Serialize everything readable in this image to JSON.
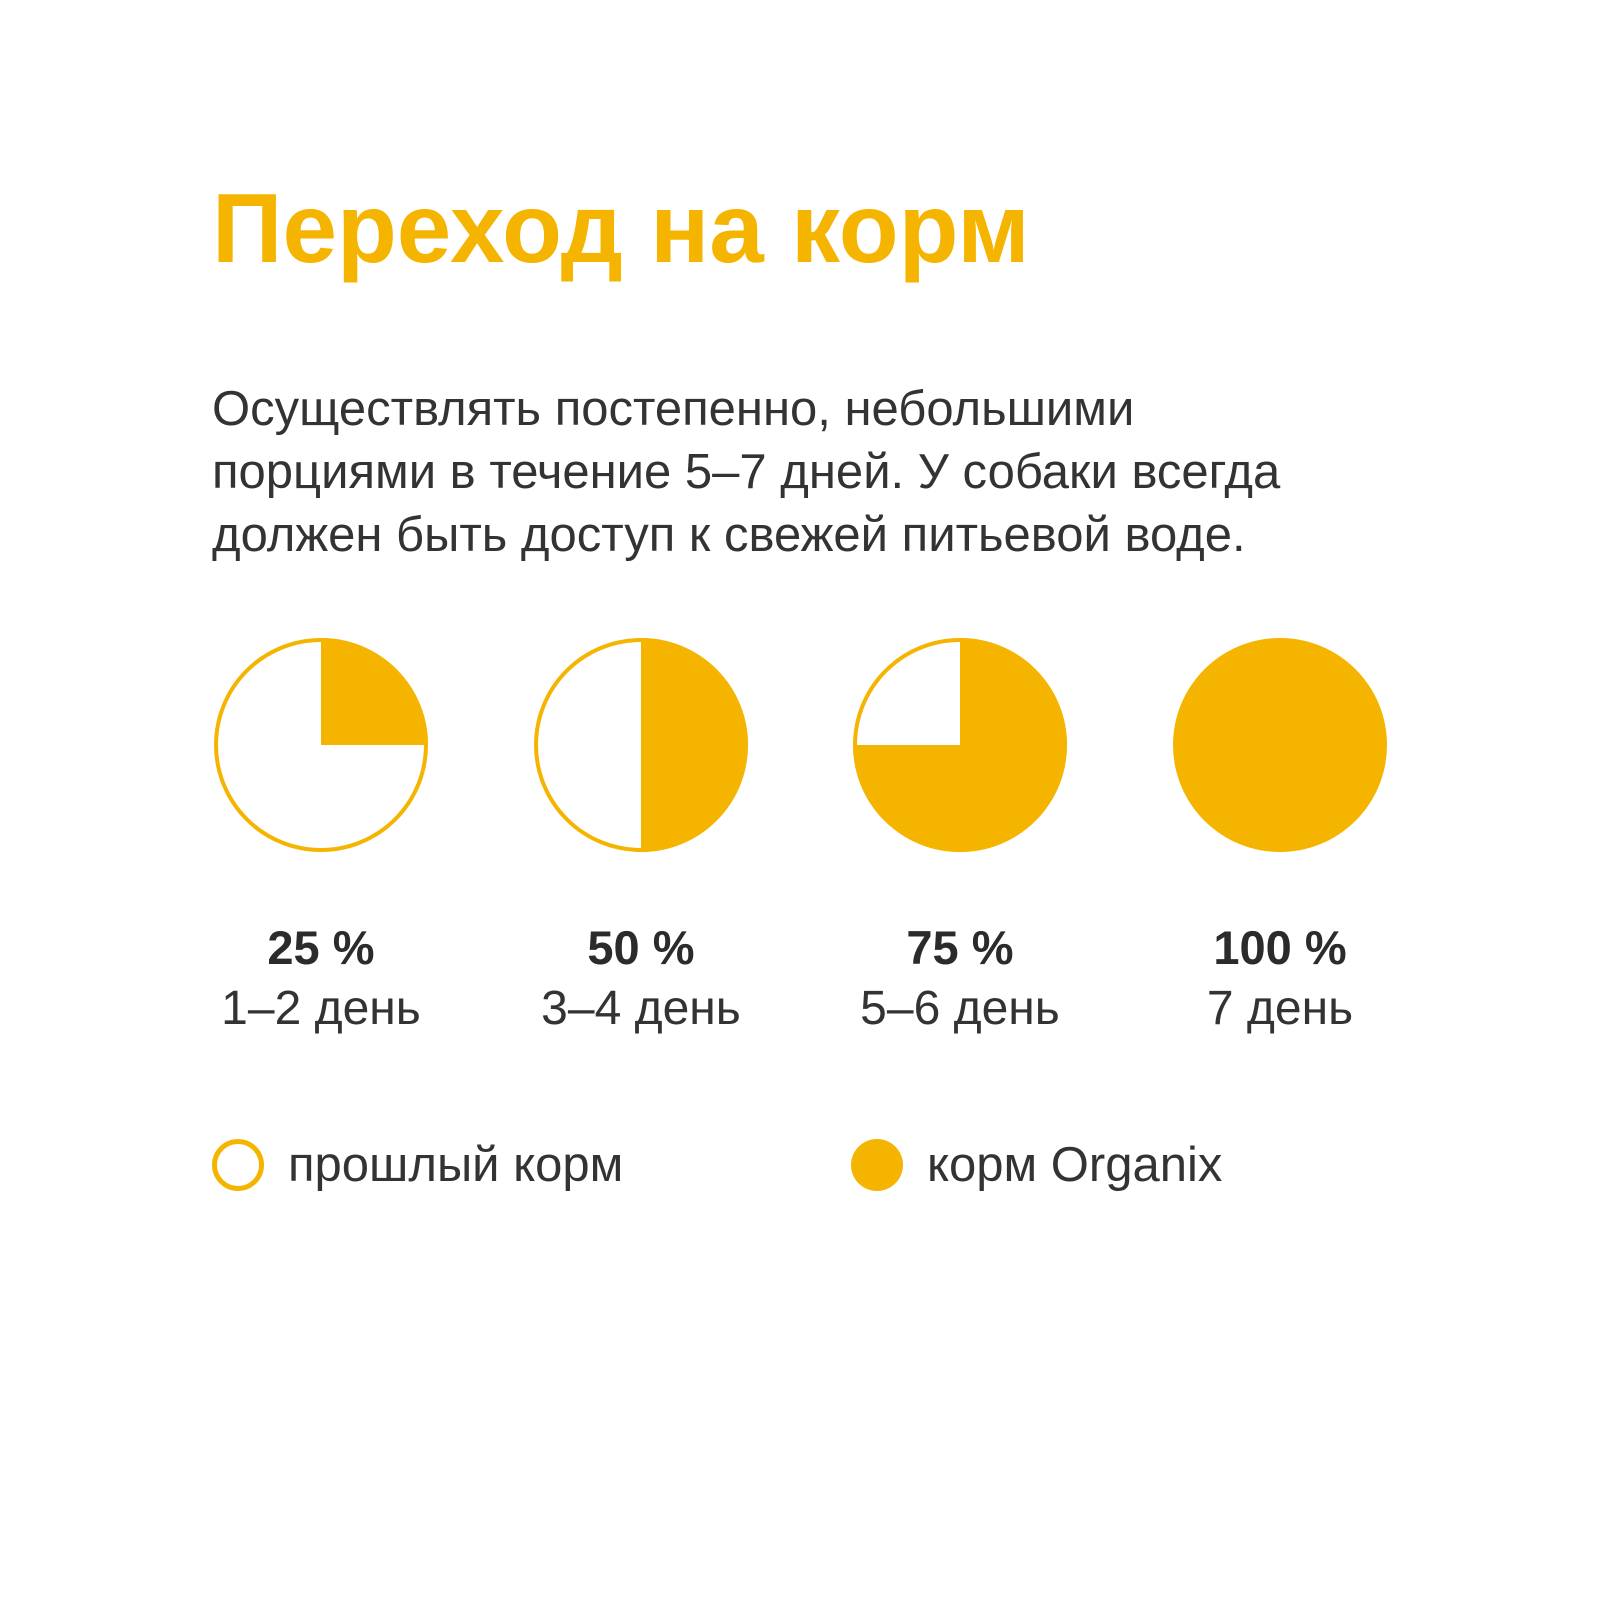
{
  "title": "Переход на корм",
  "description": [
    "Осуществлять постепенно, небольшими",
    "порциями в течение 5–7 дней. У собаки всегда",
    "должен быть доступ к свежей питьевой воде."
  ],
  "colors": {
    "accent": "#f5b400",
    "text": "#333333",
    "background": "#ffffff"
  },
  "chart_data": {
    "type": "pie",
    "series": [
      {
        "name": "прошлый корм"
      },
      {
        "name": "корм Organix"
      }
    ],
    "stages": [
      {
        "percent_label": "25 %",
        "days_label": "1–2 день",
        "organix_share": 0.25
      },
      {
        "percent_label": "50 %",
        "days_label": "3–4 день",
        "organix_share": 0.5
      },
      {
        "percent_label": "75 %",
        "days_label": "5–6 день",
        "organix_share": 0.75
      },
      {
        "percent_label": "100 %",
        "days_label": "7 день",
        "organix_share": 1.0
      }
    ]
  }
}
